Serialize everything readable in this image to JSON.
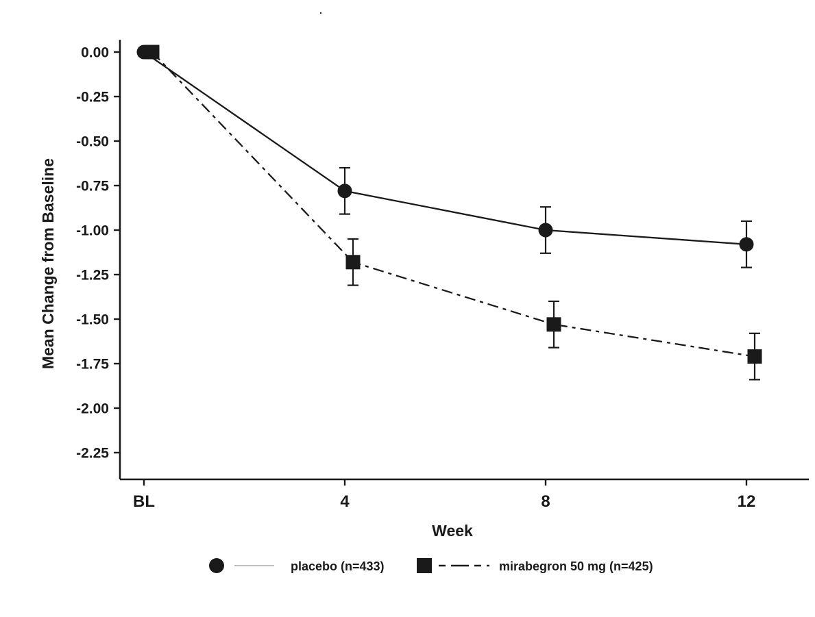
{
  "page": {
    "background": "#ffffff",
    "stray_mark": "."
  },
  "chart_data": {
    "type": "line",
    "title": "",
    "xlabel": "Week",
    "ylabel": "Mean Change from Baseline",
    "categories": [
      "BL",
      "4",
      "8",
      "12"
    ],
    "ylim": [
      -2.4,
      0.06
    ],
    "yticks": [
      0,
      -0.25,
      -0.5,
      -0.75,
      -1,
      -1.25,
      -1.5,
      -1.75,
      -2,
      -2.25
    ],
    "ytick_labels": [
      "0.00",
      "-0.25",
      "-0.50",
      "-0.75",
      "-1.00",
      "-1.25",
      "-1.50",
      "-1.75",
      "-2.00",
      "-2.25"
    ],
    "grid": false,
    "legend_position": "bottom",
    "line_color": "#1a1a1a",
    "series": [
      {
        "name": "placebo (n=433)",
        "marker": "circle",
        "line_style": "solid",
        "color": "#1a1a1a",
        "values": [
          0.0,
          -0.78,
          -1.0,
          -1.08
        ],
        "error": [
          0.0,
          0.13,
          0.13,
          0.13
        ]
      },
      {
        "name": "mirabegron 50 mg (n=425)",
        "marker": "square",
        "line_style": "dash-dot",
        "color": "#1a1a1a",
        "values": [
          0.0,
          -1.18,
          -1.53,
          -1.71
        ],
        "error": [
          0.0,
          0.13,
          0.13,
          0.13
        ]
      }
    ]
  }
}
